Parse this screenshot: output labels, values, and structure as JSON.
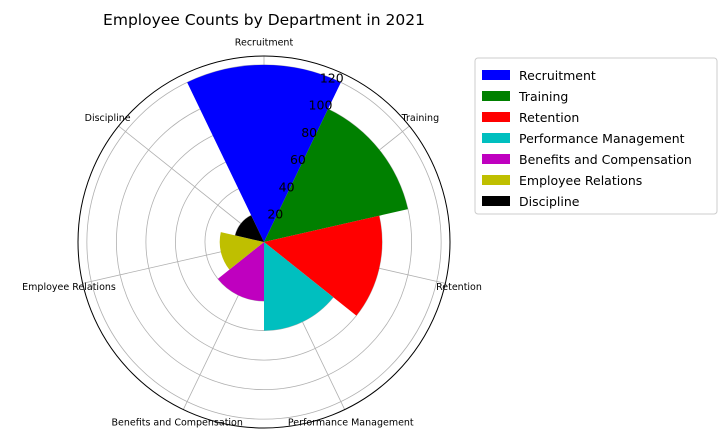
{
  "chart_data": {
    "type": "polar-bar",
    "title": "Employee Counts by Department in 2021",
    "categories": [
      "Recruitment",
      "Training",
      "Retention",
      "Performance Management",
      "Benefits and Compensation",
      "Employee Relations",
      "Discipline"
    ],
    "values": [
      120,
      100,
      80,
      60,
      40,
      30,
      20
    ],
    "colors": [
      "#0000ff",
      "#008000",
      "#ff0000",
      "#00bfbf",
      "#bf00bf",
      "#bfbf00",
      "#000000"
    ],
    "radial_ticks": [
      "20",
      "40",
      "60",
      "80",
      "100",
      "120"
    ],
    "radial_tick_values": [
      20,
      40,
      60,
      80,
      100,
      120
    ],
    "rlim": [
      0,
      126
    ],
    "grid": true,
    "legend": {
      "placement": "upper-right-outside",
      "entries": [
        "Recruitment",
        "Training",
        "Retention",
        "Performance Management",
        "Benefits and Compensation",
        "Employee Relations",
        "Discipline"
      ]
    }
  }
}
